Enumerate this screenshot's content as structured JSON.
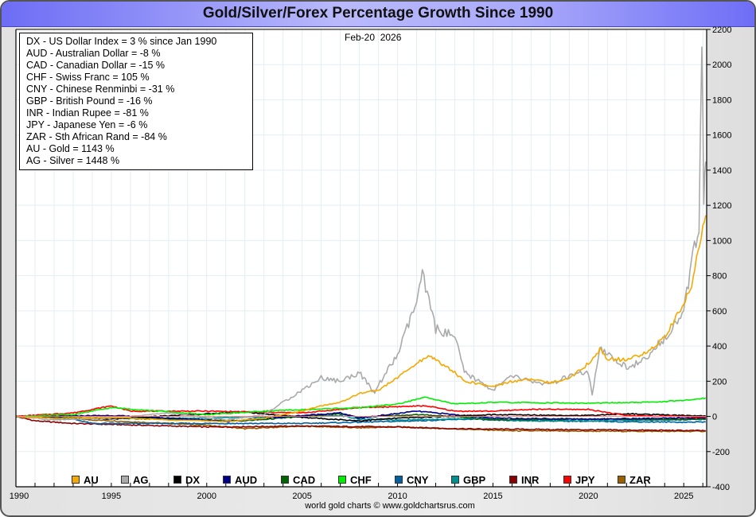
{
  "chart_data": {
    "type": "line",
    "title": "Gold/Silver/Forex Percentage Growth Since 1990",
    "date_label": "Feb-20  2026",
    "footer": "world gold charts © www.goldchartsrus.com",
    "xlabel": "",
    "ylabel": "",
    "xlim": [
      1990,
      2026.2
    ],
    "ylim": [
      -400,
      2200
    ],
    "x_ticks": [
      1990,
      1995,
      2000,
      2005,
      2010,
      2015,
      2020,
      2025
    ],
    "x_tick_labels": [
      "1990",
      "1995",
      "2000",
      "2005",
      "2010",
      "2015",
      "2020",
      "2025"
    ],
    "y_ticks": [
      -400,
      -200,
      0,
      200,
      400,
      600,
      800,
      1000,
      1200,
      1400,
      1600,
      1800,
      2000,
      2200
    ],
    "y_tick_labels": [
      "-400",
      "-200",
      "0",
      "200",
      "400",
      "600",
      "800",
      "1000",
      "1200",
      "1400",
      "1600",
      "1800",
      "2000",
      "2200"
    ],
    "grid": true,
    "legend_placement": "bottom",
    "info_lines": [
      "DX - US Dollar Index = 3 % since Jan 1990",
      "AUD - Australian Dollar = -8 %",
      "CAD - Canadian Dollar = -15 %",
      "CHF - Swiss Franc = 105 %",
      "CNY - Chinese Renminbi = -31 %",
      "GBP - British Pound = -16 %",
      "INR - Indian Rupee = -81 %",
      "JPY - Japanese Yen = -6 %",
      "ZAR - Sth African Rand = -84 %",
      "AU - Gold = 1143 %",
      "AG - Silver = 1448 %"
    ],
    "series": [
      {
        "name": "AU",
        "color": "#f5a800",
        "x": [
          1990,
          1992,
          1995,
          1998,
          2000,
          2001,
          2003,
          2005,
          2006,
          2007,
          2008,
          2009,
          2010,
          2011,
          2011.7,
          2012,
          2013,
          2013.5,
          2015,
          2016,
          2017,
          2018,
          2019,
          2020,
          2020.6,
          2021,
          2022,
          2023,
          2024,
          2025,
          2025.5,
          2026,
          2026.15
        ],
        "y": [
          0,
          -10,
          -5,
          -20,
          -25,
          -30,
          -10,
          30,
          60,
          80,
          130,
          150,
          220,
          300,
          350,
          320,
          250,
          200,
          170,
          200,
          210,
          190,
          220,
          300,
          380,
          330,
          320,
          360,
          450,
          640,
          780,
          1100,
          1143
        ]
      },
      {
        "name": "AG",
        "color": "#aaaaaa",
        "x": [
          1990,
          1992,
          1995,
          1998,
          2001,
          2003,
          2004,
          2006,
          2007,
          2008,
          2008.8,
          2009,
          2010,
          2011,
          2011.3,
          2012,
          2013,
          2013.5,
          2015,
          2016,
          2017,
          2018,
          2019,
          2020,
          2020.2,
          2020.6,
          2021,
          2022,
          2023,
          2024,
          2025,
          2025.8,
          2025.95,
          2026.05,
          2026.15
        ],
        "y": [
          0,
          -20,
          -10,
          20,
          -20,
          10,
          80,
          220,
          200,
          250,
          130,
          180,
          350,
          650,
          800,
          500,
          450,
          250,
          150,
          230,
          200,
          180,
          230,
          250,
          120,
          380,
          350,
          280,
          320,
          450,
          600,
          1100,
          2060,
          1250,
          1448
        ]
      },
      {
        "name": "DX",
        "color": "#000000",
        "x": [
          1990,
          1995,
          2000,
          2002,
          2005,
          2008,
          2010,
          2015,
          2020,
          2022,
          2025,
          2026.15
        ],
        "y": [
          0,
          -15,
          15,
          25,
          -5,
          -25,
          -10,
          10,
          5,
          15,
          5,
          3
        ]
      },
      {
        "name": "AUD",
        "color": "#00008b",
        "x": [
          1990,
          1995,
          2000,
          2001,
          2003,
          2007,
          2008,
          2011,
          2013,
          2015,
          2020,
          2025,
          2026.15
        ],
        "y": [
          0,
          5,
          -20,
          -30,
          -10,
          20,
          -10,
          30,
          10,
          -10,
          -15,
          -10,
          -8
        ]
      },
      {
        "name": "CAD",
        "color": "#006400",
        "x": [
          1990,
          1995,
          2000,
          2002,
          2007,
          2008,
          2011,
          2013,
          2015,
          2020,
          2025,
          2026.15
        ],
        "y": [
          0,
          -10,
          -20,
          -25,
          15,
          -5,
          10,
          0,
          -20,
          -15,
          -18,
          -15
        ]
      },
      {
        "name": "CHF",
        "color": "#00ee00",
        "x": [
          1990,
          1993,
          1995,
          2000,
          2003,
          2008,
          2010,
          2011.5,
          2013,
          2015,
          2020,
          2023,
          2025,
          2026.15
        ],
        "y": [
          0,
          10,
          50,
          10,
          30,
          50,
          70,
          110,
          70,
          80,
          75,
          80,
          90,
          105
        ]
      },
      {
        "name": "CNY",
        "color": "#0060a0",
        "x": [
          1990,
          1993,
          1994,
          2005,
          2010,
          2014,
          2015,
          2020,
          2025,
          2026.15
        ],
        "y": [
          0,
          -15,
          -40,
          -40,
          -28,
          -15,
          -22,
          -28,
          -33,
          -31
        ]
      },
      {
        "name": "GBP",
        "color": "#009090",
        "x": [
          1990,
          1995,
          2000,
          2007,
          2008,
          2010,
          2015,
          2016,
          2020,
          2025,
          2026.15
        ],
        "y": [
          0,
          -10,
          -10,
          5,
          -15,
          -20,
          -10,
          -25,
          -25,
          -20,
          -16
        ]
      },
      {
        "name": "INR",
        "color": "#8b0000",
        "x": [
          1990,
          1991,
          1993,
          2000,
          2005,
          2010,
          2013,
          2015,
          2020,
          2025,
          2026.15
        ],
        "y": [
          0,
          -25,
          -40,
          -60,
          -55,
          -60,
          -70,
          -72,
          -76,
          -80,
          -81
        ]
      },
      {
        "name": "JPY",
        "color": "#ff0000",
        "x": [
          1990,
          1993,
          1995,
          1996,
          2000,
          2005,
          2008,
          2011.5,
          2013,
          2015,
          2017,
          2020,
          2022,
          2025,
          2026.15
        ],
        "y": [
          0,
          20,
          60,
          30,
          30,
          20,
          50,
          60,
          30,
          30,
          40,
          40,
          5,
          0,
          -6
        ]
      },
      {
        "name": "ZAR",
        "color": "#9a6000",
        "x": [
          1990,
          1995,
          2000,
          2002,
          2005,
          2008,
          2010,
          2015,
          2016,
          2020,
          2025,
          2026.15
        ],
        "y": [
          0,
          -25,
          -50,
          -70,
          -55,
          -65,
          -60,
          -78,
          -82,
          -84,
          -85,
          -84
        ]
      }
    ]
  }
}
